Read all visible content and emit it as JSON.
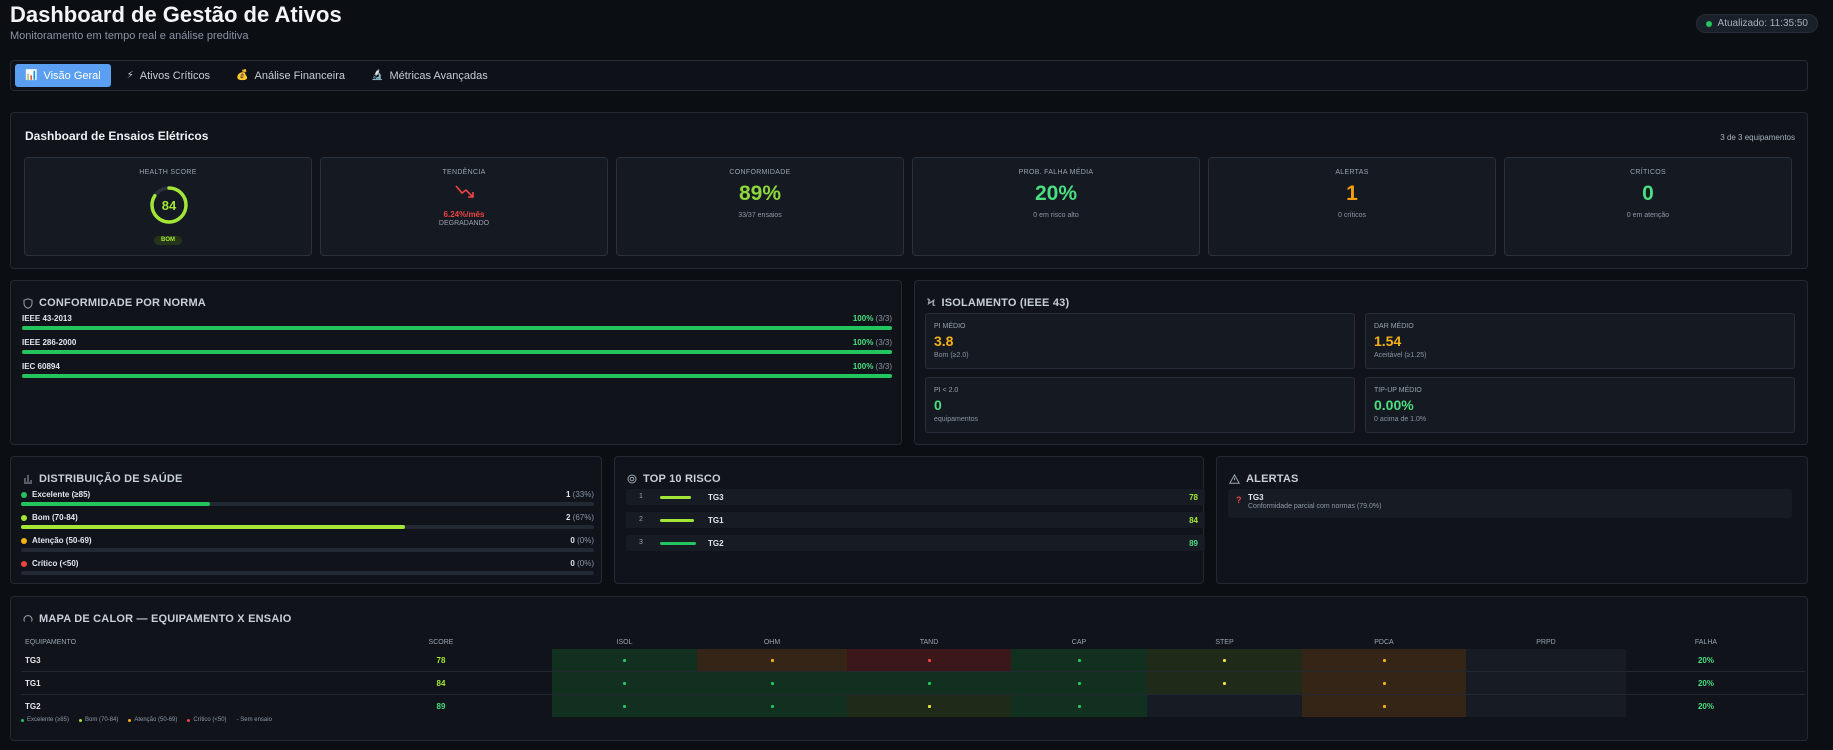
{
  "header": {
    "title": "Dashboard de Gestão de Ativos",
    "subtitle": "Monitoramento em tempo real e análise preditiva",
    "updated": "Atualizado: 11:35:50"
  },
  "tabs": [
    {
      "label": "Visão Geral",
      "icon": "📊"
    },
    {
      "label": "Ativos Críticos",
      "icon": "⚡"
    },
    {
      "label": "Análise Financeira",
      "icon": "💰"
    },
    {
      "label": "Métricas Avançadas",
      "icon": "🔬"
    }
  ],
  "ensaios": {
    "title": "Dashboard de Ensaios Elétricos",
    "count": "3 de 3 equipamentos",
    "health": {
      "label": "HEALTH SCORE",
      "value": "84",
      "score": 84,
      "badge": "BOM"
    },
    "trend": {
      "label": "TENDÊNCIA",
      "value": "6.24%/mês",
      "sub": "DEGRADANDO"
    },
    "conf": {
      "label": "CONFORMIDADE",
      "value": "89%",
      "sub": "33/37 ensaios"
    },
    "prob": {
      "label": "PROB. FALHA MÉDIA",
      "value": "20%",
      "sub": "0 em risco alto"
    },
    "alerts": {
      "label": "ALERTAS",
      "value": "1",
      "sub": "0 críticos"
    },
    "critical": {
      "label": "CRÍTICOS",
      "value": "0",
      "sub": "0 em atenção"
    }
  },
  "conformidade": {
    "title": "CONFORMIDADE POR NORMA",
    "items": [
      {
        "name": "IEEE 43-2013",
        "pct": "100%",
        "count": "(3/3)",
        "fraction": 1.0
      },
      {
        "name": "IEEE 286-2000",
        "pct": "100%",
        "count": "(3/3)",
        "fraction": 1.0
      },
      {
        "name": "IEC 60894",
        "pct": "100%",
        "count": "(3/3)",
        "fraction": 1.0
      }
    ]
  },
  "isolamento": {
    "title": "ISOLAMENTO (IEEE 43)",
    "pi": {
      "label": "PI MÉDIO",
      "value": "3.8",
      "sub": "Bom (≥2.0)"
    },
    "dar": {
      "label": "DAR MÉDIO",
      "value": "1.54",
      "sub": "Aceitável (≥1.25)"
    },
    "pilow": {
      "label": "PI < 2.0",
      "value": "0",
      "sub": "equipamentos"
    },
    "tipup": {
      "label": "TIP-UP MÉDIO",
      "value": "0.00%",
      "sub": "0 acima de 1.0%"
    }
  },
  "distribuicao": {
    "title": "DISTRIBUIÇÃO DE SAÚDE",
    "items": [
      {
        "name": "Excelente (≥85)",
        "count": "1",
        "pct": "(33%)",
        "fraction": 0.33,
        "color": "#22c55e"
      },
      {
        "name": "Bom (70-84)",
        "count": "2",
        "pct": "(67%)",
        "fraction": 0.67,
        "color": "#a3e635"
      },
      {
        "name": "Atenção (50-69)",
        "count": "0",
        "pct": "(0%)",
        "fraction": 0,
        "color": "#f5b014"
      },
      {
        "name": "Crítico (<50)",
        "count": "0",
        "pct": "(0%)",
        "fraction": 0,
        "color": "#ef4444"
      }
    ]
  },
  "top10": {
    "title": "TOP 10 RISCO",
    "items": [
      {
        "rank": "1",
        "name": "TG3",
        "score": "78",
        "fraction": 0.78
      },
      {
        "rank": "2",
        "name": "TG1",
        "score": "84",
        "fraction": 0.84
      },
      {
        "rank": "3",
        "name": "TG2",
        "score": "89",
        "fraction": 0.89
      }
    ]
  },
  "alertas": {
    "title": "ALERTAS",
    "items": [
      {
        "icon": "?",
        "title": "TG3",
        "desc": "Conformidade parcial com normas (79.0%)"
      }
    ]
  },
  "heatmap": {
    "title": "MAPA DE CALOR — EQUIPAMENTO X ENSAIO",
    "columns": [
      "EQUIPAMENTO",
      "SCORE",
      "ISOL",
      "OHM",
      "TAND",
      "CAP",
      "STEP",
      "PDCA",
      "PRPD",
      "FALHA"
    ],
    "rows": [
      {
        "name": "TG3",
        "score": "78",
        "cells": [
          "good",
          "warn",
          "bad",
          "good",
          "ok",
          "warn",
          "none"
        ],
        "falha": "20%"
      },
      {
        "name": "TG1",
        "score": "84",
        "cells": [
          "good",
          "good",
          "good",
          "good",
          "ok",
          "warn",
          "none"
        ],
        "falha": "20%"
      },
      {
        "name": "TG2",
        "score": "89",
        "cells": [
          "good",
          "good",
          "ok",
          "good",
          "none",
          "warn",
          "none"
        ],
        "falha": "20%"
      }
    ],
    "legend": [
      "Excelente (≥85)",
      "Bom (70-84)",
      "Atenção (50-69)",
      "Crítico (<50)",
      "- Sem ensaio"
    ]
  },
  "colors": {
    "green": "#22c55e",
    "lime": "#a3e635",
    "orange": "#f59e0b",
    "red": "#ef4444",
    "accent": "#5b9ff2"
  }
}
